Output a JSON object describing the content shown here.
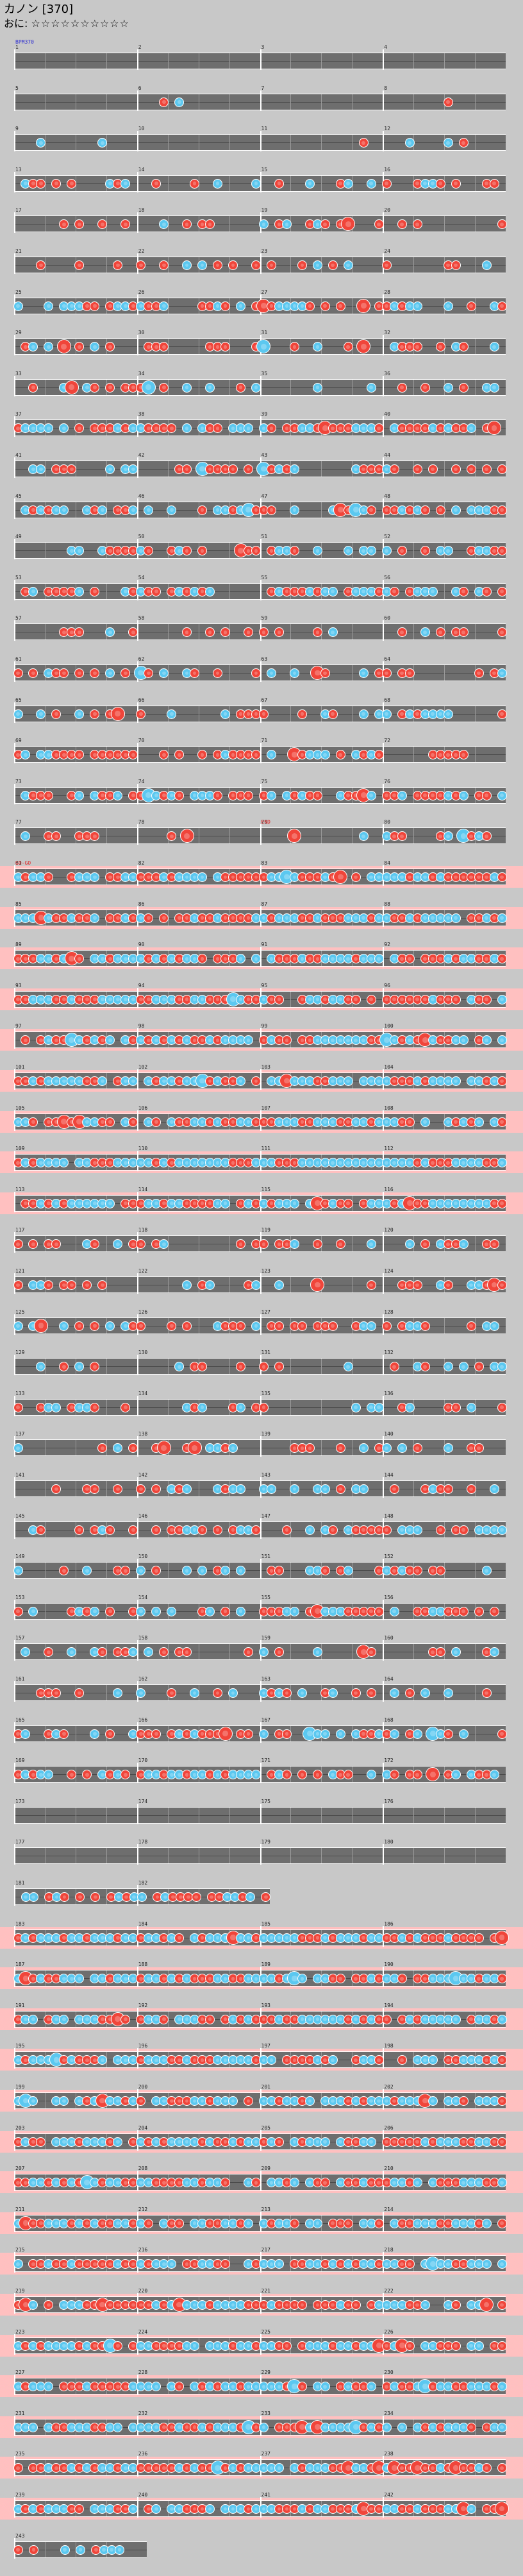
{
  "header": {
    "title": "カノン [370]",
    "difficulty_prefix": "おに",
    "stars": "☆☆☆☆☆☆☆☆☆☆"
  },
  "colors": {
    "background": "#c8c8c8",
    "lane": "#6e6e6e",
    "gogo_band": "#ffc0c0",
    "don": "#f0453a",
    "ka": "#5bc8f0"
  },
  "events": {
    "start_label": "BPM370",
    "gogo_label": "GO-GO",
    "gogo_end_label": "END"
  },
  "chart_data": {
    "type": "table",
    "title": "カノン [370]",
    "note_types": [
      "don",
      "ka",
      "big-don",
      "big-ka"
    ],
    "rows": 62
  }
}
